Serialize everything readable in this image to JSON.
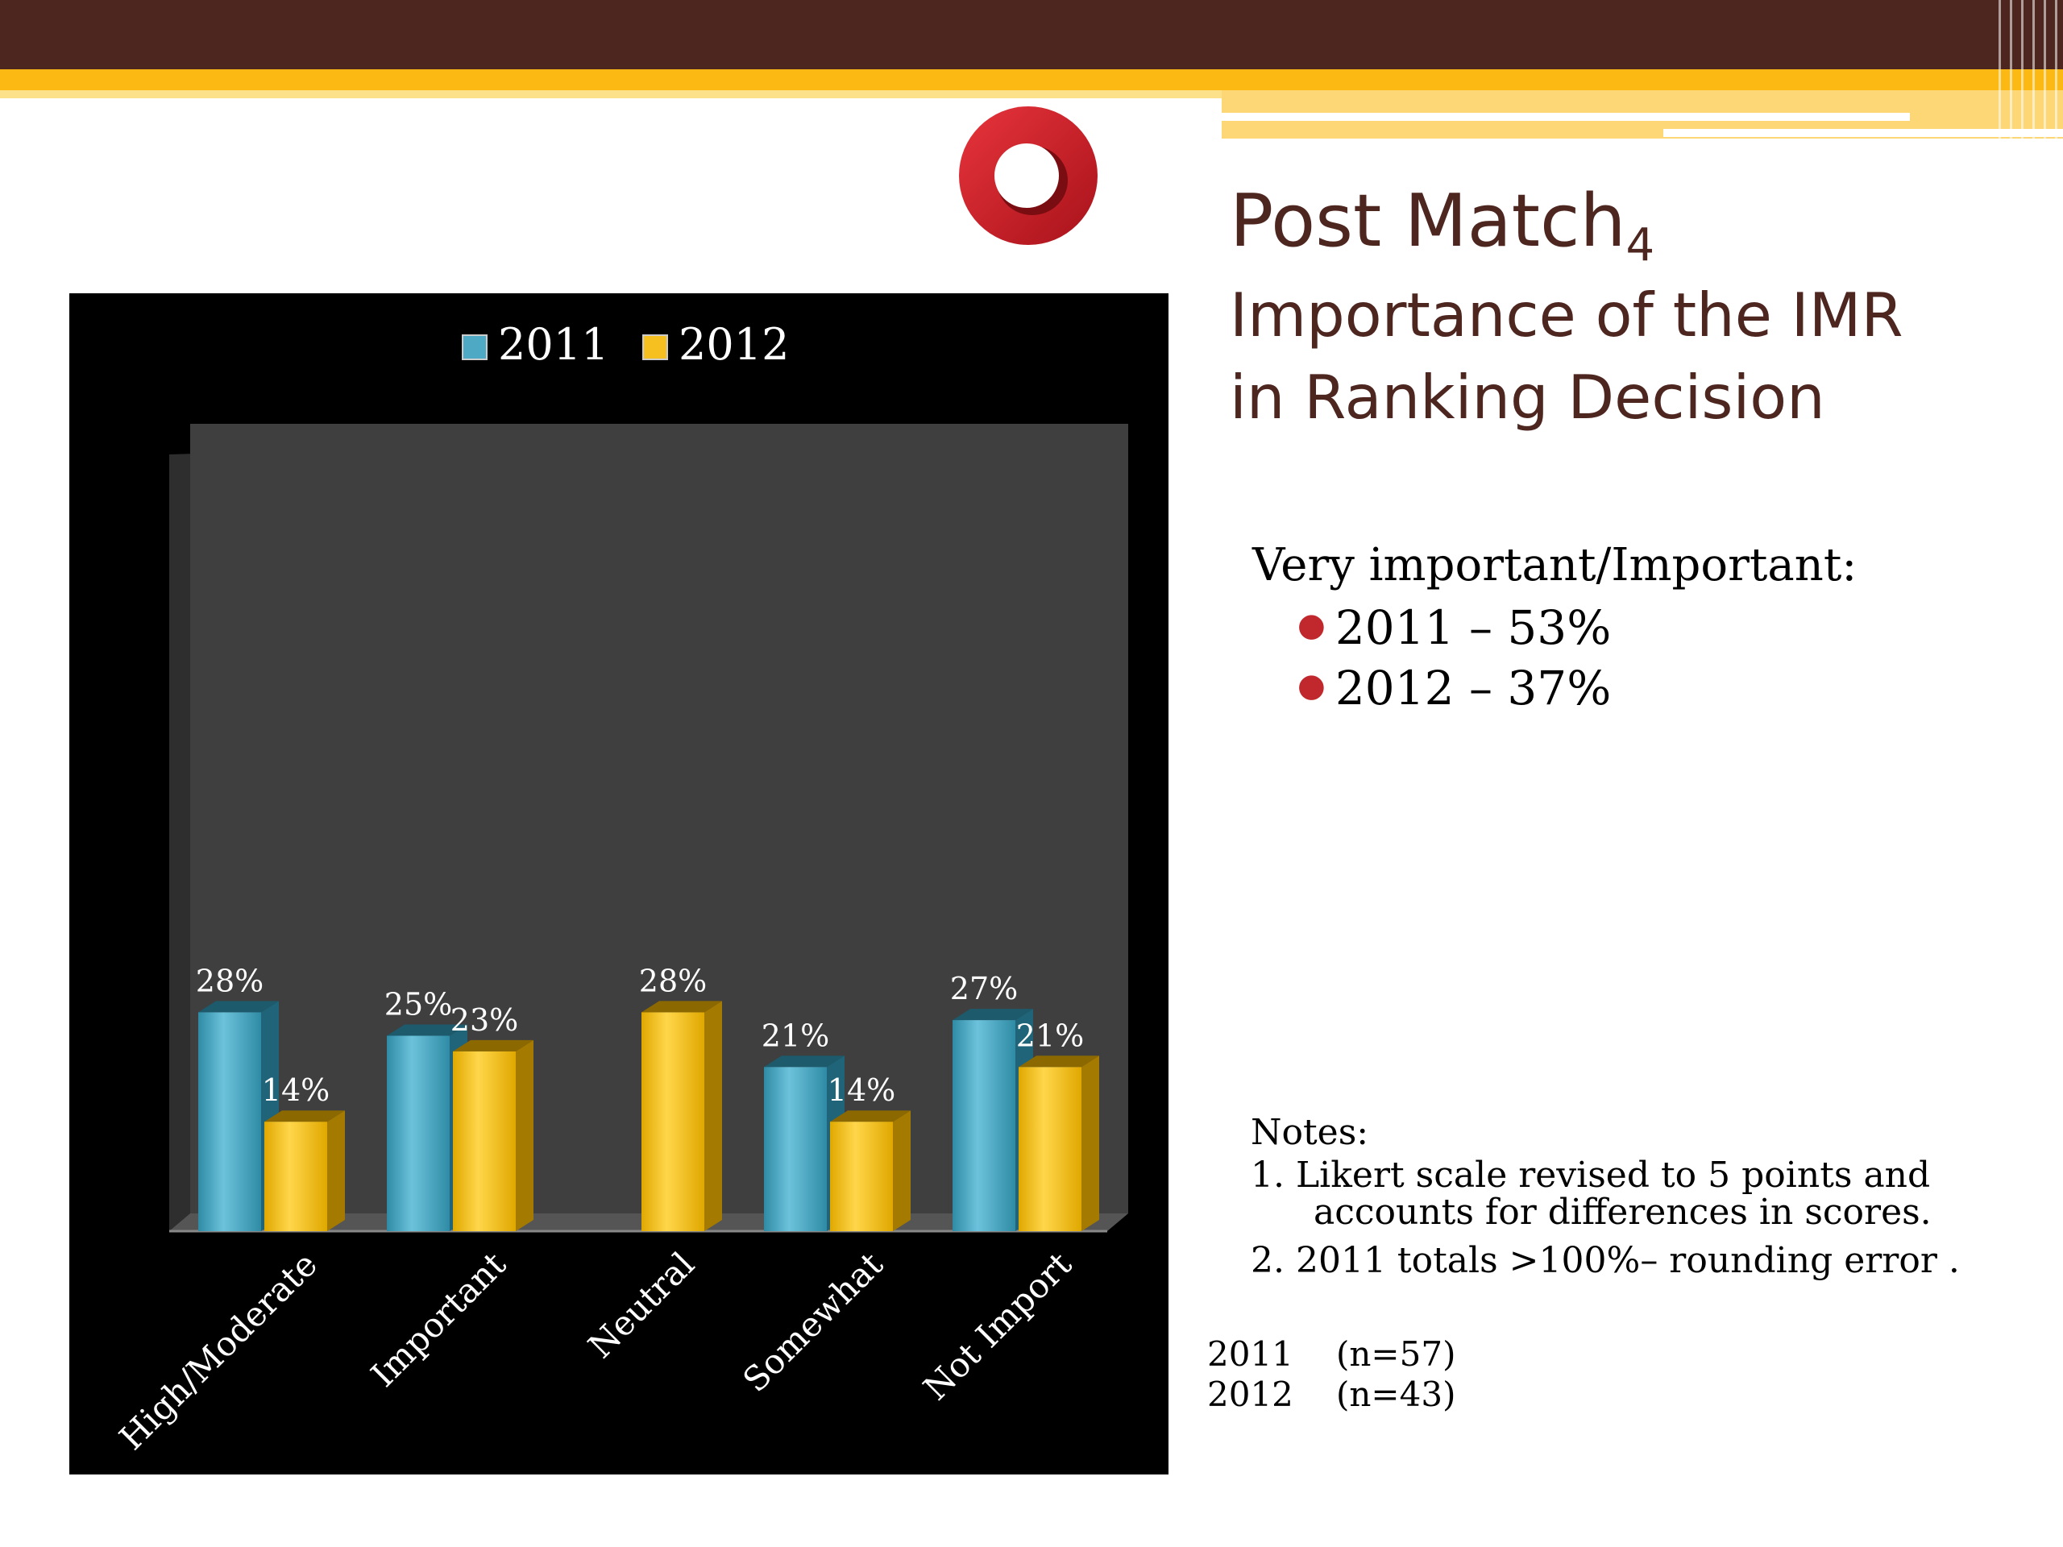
{
  "slide": {
    "title_main": "Post Match",
    "title_sub": "4",
    "subtitle_lines": [
      "Importance of the IMR",
      "in Ranking Decision"
    ]
  },
  "summary": {
    "heading": "Very important/Important:",
    "items": [
      "2011 – 53%",
      "2012 – 37%"
    ]
  },
  "notes": {
    "heading": "Notes:",
    "items": [
      {
        "line1": "1. Likert scale revised to 5 points and",
        "line2": "accounts for differences in scores."
      },
      {
        "line1": "2. 2011 totals >100%– rounding error .",
        "line2": ""
      }
    ]
  },
  "sample_sizes": [
    {
      "year": "2011",
      "n": "(n=57)"
    },
    {
      "year": "2012",
      "n": "(n=43)"
    }
  ],
  "colors": {
    "banner_dark": "#4e2620",
    "banner_gold": "#fdb913",
    "title_brown": "#4e2620",
    "bullet_red": "#c0282d",
    "logo_red": "#d4202a",
    "chart_background": "#000000",
    "plot_wall": "#3f3f3f",
    "series_2011": "#4ea9c4",
    "series_2012": "#f5c020"
  },
  "icons": {
    "logo": "red-ring-logo",
    "bullet": "red-dot-bullet"
  },
  "chart_data": {
    "type": "bar",
    "title": "",
    "categories": [
      "High/Moderate",
      "Important",
      "Neutral",
      "Somewhat",
      "Not Import"
    ],
    "series": [
      {
        "name": "2011",
        "values": [
          28,
          25,
          null,
          21,
          27
        ],
        "labels": [
          "28%",
          "25%",
          "",
          "21%",
          "27%"
        ]
      },
      {
        "name": "2012",
        "values": [
          14,
          23,
          28,
          14,
          21
        ],
        "labels": [
          "14%",
          "23%",
          "28%",
          "14%",
          "21%"
        ]
      }
    ],
    "xlabel": "",
    "ylabel": "",
    "ylim": [
      0,
      100
    ],
    "grid": false,
    "legend_position": "top-center",
    "style": "3d"
  }
}
